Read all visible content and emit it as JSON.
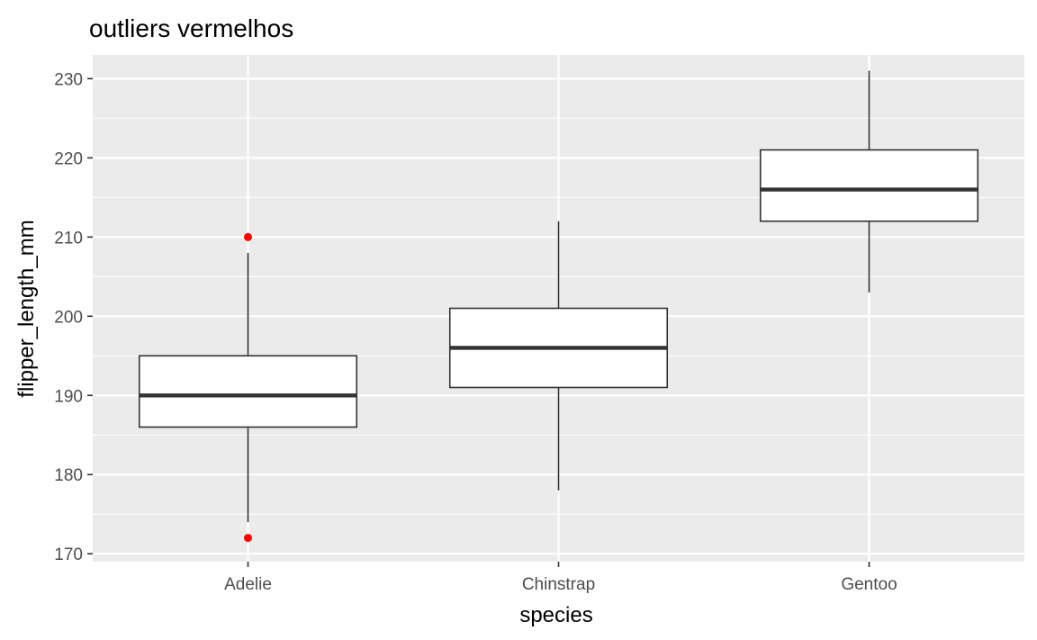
{
  "chart_data": {
    "type": "boxplot",
    "title": "outliers vermelhos",
    "xlabel": "species",
    "ylabel": "flipper_length_mm",
    "categories": [
      "Adelie",
      "Chinstrap",
      "Gentoo"
    ],
    "ylim": [
      169,
      233
    ],
    "yticks": [
      170,
      180,
      190,
      200,
      210,
      220,
      230
    ],
    "boxes": [
      {
        "category": "Adelie",
        "whisker_low": 174,
        "q1": 186,
        "median": 190,
        "q3": 195,
        "whisker_high": 208,
        "outliers": [
          210,
          172
        ]
      },
      {
        "category": "Chinstrap",
        "whisker_low": 178,
        "q1": 191,
        "median": 196,
        "q3": 201,
        "whisker_high": 212,
        "outliers": []
      },
      {
        "category": "Gentoo",
        "whisker_low": 203,
        "q1": 212,
        "median": 216,
        "q3": 221,
        "whisker_high": 231,
        "outliers": []
      }
    ],
    "grid": true,
    "panel_background": "#ebebeb",
    "gridline_color": "#ffffff",
    "box_fill": "#ffffff",
    "box_line_color": "#333333",
    "outlier_color": "#ff0000"
  }
}
